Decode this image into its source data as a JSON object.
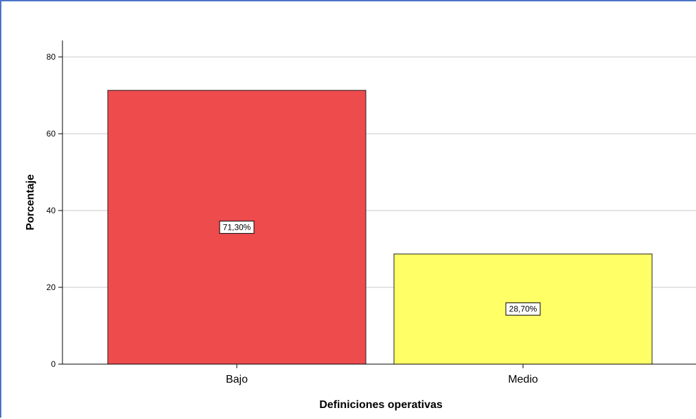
{
  "chart_data": {
    "type": "bar",
    "categories": [
      "Bajo",
      "Medio"
    ],
    "values": [
      71.3,
      28.7
    ],
    "data_labels": [
      "71,30%",
      "28,70%"
    ],
    "colors": [
      "#ee4b4d",
      "#ffff66"
    ],
    "xlabel": "Definiciones operativas",
    "ylabel": "Porcentaje",
    "ylim": [
      0,
      84
    ],
    "yticks": [
      0,
      20,
      40,
      60,
      80
    ],
    "ytick_labels": [
      "0",
      "20",
      "40",
      "60",
      "80"
    ],
    "grid": true,
    "frame_color": "#4a73c4"
  }
}
